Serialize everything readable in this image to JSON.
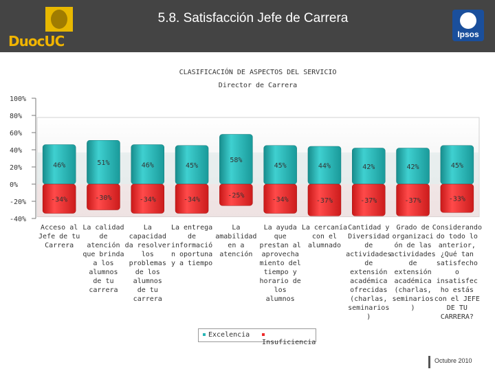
{
  "header": {
    "title": "5.8. Satisfacción  Jefe de Carrera",
    "logo_left_text": "DuocUC",
    "logo_right_text": "Ipsos"
  },
  "colors": {
    "header_bg": "#444444",
    "excelencia": "#29b6b6",
    "insuficiencia": "#ee2b2b"
  },
  "chart_data": {
    "type": "bar",
    "title": "CLASIFICACIÓN DE ASPECTOS DEL SERVICIO",
    "subtitle": "Director de Carrera",
    "ylim": [
      -40,
      100
    ],
    "y_ticks": [
      "100%",
      "80%",
      "60%",
      "40%",
      "20%",
      "0%",
      "-20%",
      "-40%"
    ],
    "categories": [
      [
        "Acceso al",
        "Jefe de tu",
        "Carrera"
      ],
      [
        "La calidad",
        "de",
        "atención",
        "que brinda",
        "a los",
        "alumnos",
        "de tu",
        "carrera"
      ],
      [
        "La",
        "capacidad",
        "da resolver",
        "los",
        "problemas",
        "de los",
        "alumnos",
        "de tu",
        "carrera"
      ],
      [
        "La entrega",
        "de",
        "informació",
        "n oportuna",
        "y a tiempo"
      ],
      [
        "La",
        "amabilidad",
        "en a",
        "atención"
      ],
      [
        "La ayuda",
        "que",
        "prestan al",
        "aprovecha",
        "miento del",
        "tiempo y",
        "horario de",
        "los",
        "alumnos"
      ],
      [
        "La cercanía",
        "con el",
        "alumnado"
      ],
      [
        "Cantidad y",
        "Diversidad",
        "de",
        "actividades",
        "de",
        "extensión",
        "académica",
        "ofrecidas",
        "(charlas,",
        "seminarios",
        ")"
      ],
      [
        "Grado de",
        "organizaci",
        "ón de las",
        "actividades",
        "de",
        "extensión",
        "académica",
        "(charlas,",
        "seminarios",
        ")"
      ],
      [
        "Considerando",
        "do todo lo",
        "anterior,",
        "¿Qué tan",
        "satisfecho",
        "o",
        "insatisfec",
        "ho estás",
        "con el JEFE",
        "DE TU",
        "CARRERA?"
      ]
    ],
    "series": [
      {
        "name": "Excelencia",
        "values": [
          46,
          51,
          46,
          45,
          58,
          45,
          44,
          42,
          42,
          45
        ],
        "labels": [
          "46%",
          "51%",
          "46%",
          "45%",
          "58%",
          "45%",
          "44%",
          "42%",
          "42%",
          "45%"
        ]
      },
      {
        "name": "Insuficiencia",
        "values": [
          -34,
          -30,
          -34,
          -34,
          -25,
          -34,
          -37,
          -37,
          -37,
          -33
        ],
        "labels": [
          "-34%",
          "-30%",
          "-34%",
          "-34%",
          "-25%",
          "-34%",
          "-37%",
          "-37%",
          "-37%",
          "-33%"
        ]
      }
    ],
    "legend": [
      "Excelencia",
      "Insuficiencia"
    ],
    "legend_position": "bottom-center"
  },
  "footer": {
    "date": "Octubre 2010"
  }
}
